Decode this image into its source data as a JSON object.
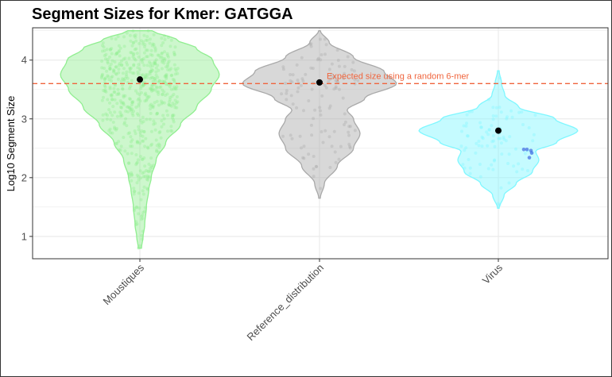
{
  "chart_data": {
    "type": "violin",
    "title": "Segment Sizes for Kmer: GATGGA",
    "xlabel": "",
    "ylabel": "Log10 Segment Size",
    "ylim": [
      0.62,
      4.55
    ],
    "yticks": [
      1,
      2,
      3,
      4
    ],
    "grid": true,
    "legend": "none",
    "categories": [
      "Moustiques",
      "Reference_distribution",
      "Virus"
    ],
    "colors": {
      "Moustiques": "#90ee90",
      "Reference_distribution": "#a9a9a9",
      "Virus": "#7ff7ff",
      "reference_line": "#f0643c",
      "mean_point": "#000000",
      "highlight_points": "#4169e1"
    },
    "series": [
      {
        "category": "Moustiques",
        "mean": 3.67,
        "min": 0.8,
        "max": 4.5,
        "density_profile": [
          [
            0.8,
            0.02
          ],
          [
            1.0,
            0.04
          ],
          [
            1.2,
            0.06
          ],
          [
            1.5,
            0.08
          ],
          [
            1.8,
            0.11
          ],
          [
            2.0,
            0.14
          ],
          [
            2.3,
            0.2
          ],
          [
            2.6,
            0.32
          ],
          [
            2.9,
            0.5
          ],
          [
            3.2,
            0.7
          ],
          [
            3.5,
            0.88
          ],
          [
            3.75,
            0.98
          ],
          [
            4.0,
            0.9
          ],
          [
            4.2,
            0.7
          ],
          [
            4.35,
            0.45
          ],
          [
            4.5,
            0.15
          ]
        ],
        "point_count": 600
      },
      {
        "category": "Reference_distribution",
        "mean": 3.62,
        "min": 1.65,
        "max": 4.5,
        "density_profile": [
          [
            1.65,
            0.01
          ],
          [
            1.9,
            0.06
          ],
          [
            2.2,
            0.22
          ],
          [
            2.5,
            0.42
          ],
          [
            2.75,
            0.5
          ],
          [
            3.0,
            0.42
          ],
          [
            3.15,
            0.34
          ],
          [
            3.35,
            0.56
          ],
          [
            3.6,
            0.95
          ],
          [
            3.8,
            0.8
          ],
          [
            4.05,
            0.42
          ],
          [
            4.3,
            0.12
          ],
          [
            4.5,
            0.01
          ]
        ],
        "point_count": 120
      },
      {
        "category": "Virus",
        "mean": 2.8,
        "min": 1.48,
        "max": 3.82,
        "density_profile": [
          [
            1.48,
            0.01
          ],
          [
            1.7,
            0.07
          ],
          [
            1.9,
            0.22
          ],
          [
            2.1,
            0.42
          ],
          [
            2.3,
            0.5
          ],
          [
            2.45,
            0.46
          ],
          [
            2.6,
            0.72
          ],
          [
            2.8,
            0.98
          ],
          [
            3.0,
            0.7
          ],
          [
            3.2,
            0.25
          ],
          [
            3.4,
            0.08
          ],
          [
            3.6,
            0.04
          ],
          [
            3.82,
            0.01
          ]
        ],
        "point_count": 90,
        "highlight_points": [
          2.48,
          2.48,
          2.46,
          2.42,
          2.34
        ]
      }
    ],
    "reference_line": {
      "y": 3.6,
      "label": "Expected size using a random 6-mer"
    }
  }
}
